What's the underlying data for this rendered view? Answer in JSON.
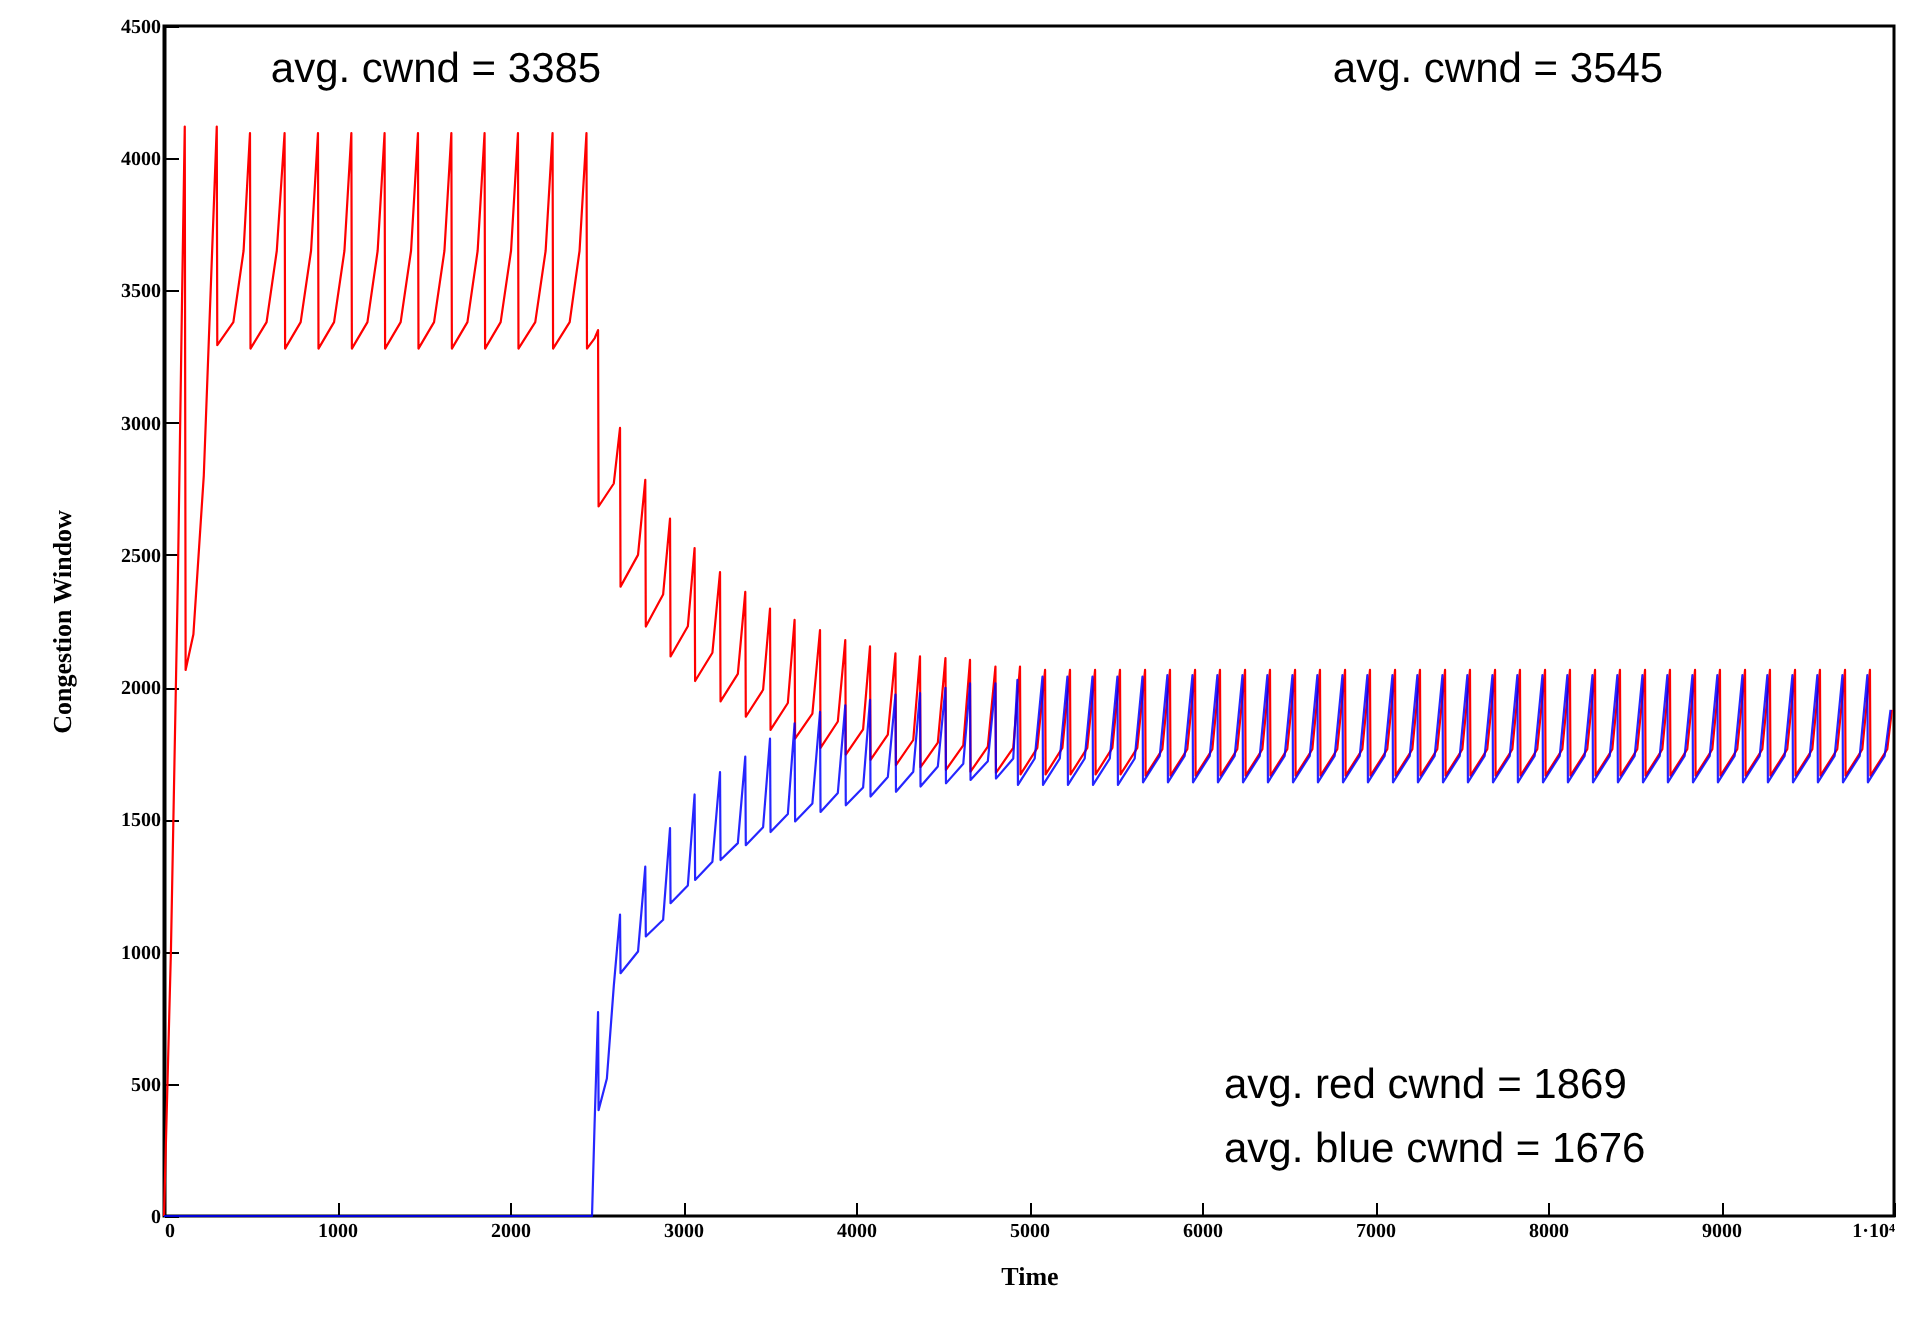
{
  "chart_data": {
    "type": "line",
    "xlabel": "Time",
    "ylabel": "Congestion Window",
    "xlim": [
      0,
      10000
    ],
    "ylim": [
      0,
      4500
    ],
    "xticks": [
      0,
      1000,
      2000,
      3000,
      4000,
      5000,
      6000,
      7000,
      8000,
      9000,
      {
        "value": 10000,
        "label": "1·10⁴"
      }
    ],
    "yticks": [
      0,
      500,
      1000,
      1500,
      2000,
      2500,
      3000,
      3500,
      4000,
      4500
    ],
    "annotations": [
      "avg. cwnd = 3385",
      "avg. cwnd = 3545",
      "avg. red  cwnd =  1869",
      "avg. blue cwnd = 1676"
    ],
    "series": [
      {
        "color": "#ff0000",
        "x": [
          0,
          40,
          80,
          105,
          120,
          125,
          170,
          230,
          305,
          308,
          401,
          460,
          497,
          500,
          593,
          652,
          697,
          700,
          790,
          850,
          890,
          893,
          983,
          1043,
          1083,
          1086,
          1176,
          1235,
          1275,
          1278,
          1368,
          1428,
          1468,
          1471,
          1561,
          1621,
          1661,
          1664,
          1754,
          1813,
          1853,
          1856,
          1946,
          2006,
          2046,
          2049,
          2146,
          2206,
          2246,
          2249,
          2345,
          2402,
          2442,
          2445,
          2490,
          2509,
          2512,
          2600,
          2636,
          2639,
          2740,
          2782,
          2785,
          2885,
          2925,
          2928,
          3028,
          3067,
          3070,
          3170,
          3214,
          3217,
          3317,
          3360,
          3363,
          3463,
          3503,
          3506,
          3606,
          3645,
          3648,
          3748,
          3792,
          3795,
          3895,
          3938,
          3941,
          4041,
          4081,
          4084,
          4184,
          4228,
          4231,
          4331,
          4370,
          4373,
          4473,
          4517,
          4520,
          4620,
          4659,
          4662,
          4762,
          4806,
          4809,
          4909,
          4948,
          4951,
          5048,
          5093,
          5096,
          5193,
          5237,
          5240,
          5337,
          5382,
          5385,
          5482,
          5526,
          5529,
          5626,
          5671,
          5674,
          5771,
          5815,
          5818,
          5915,
          5960,
          5963,
          6060,
          6104,
          6107,
          6204,
          6249,
          6252,
          6349,
          6393,
          6396,
          6493,
          6538,
          6541,
          6638,
          6682,
          6685,
          6782,
          6827,
          6830,
          6927,
          6971,
          6974,
          7071,
          7116,
          7119,
          7216,
          7260,
          7263,
          7360,
          7405,
          7408,
          7505,
          7549,
          7552,
          7649,
          7694,
          7697,
          7794,
          7838,
          7841,
          7938,
          7983,
          7986,
          8083,
          8127,
          8130,
          8227,
          8272,
          8275,
          8372,
          8416,
          8419,
          8516,
          8561,
          8564,
          8661,
          8705,
          8708,
          8805,
          8850,
          8853,
          8950,
          8994,
          8997,
          9094,
          9139,
          9142,
          9239,
          9283,
          9286,
          9383,
          9428,
          9431,
          9528,
          9572,
          9575,
          9672,
          9717,
          9720,
          9817,
          9861,
          9864,
          9961,
          9988
        ],
        "values": [
          0,
          1000,
          2400,
          3500,
          4120,
          2065,
          2200,
          2800,
          4120,
          3293,
          3380,
          3650,
          4095,
          3280,
          3380,
          3650,
          4095,
          3280,
          3380,
          3650,
          4095,
          3280,
          3380,
          3650,
          4095,
          3280,
          3380,
          3650,
          4095,
          3280,
          3380,
          3650,
          4095,
          3280,
          3380,
          3650,
          4095,
          3280,
          3380,
          3650,
          4095,
          3280,
          3380,
          3650,
          4095,
          3280,
          3380,
          3650,
          4095,
          3280,
          3380,
          3650,
          4095,
          3280,
          3320,
          3350,
          2683,
          2770,
          2980,
          2380,
          2500,
          2784,
          2229,
          2350,
          2637,
          2116,
          2230,
          2526,
          2023,
          2130,
          2435,
          1946,
          2050,
          2360,
          1888,
          1990,
          2297,
          1838,
          1940,
          2254,
          1805,
          1900,
          2216,
          1770,
          1870,
          2178,
          1745,
          1840,
          2154,
          1725,
          1820,
          2128,
          1705,
          1800,
          2116,
          1697,
          1790,
          2110,
          1687,
          1780,
          2103,
          1680,
          1775,
          2078,
          1676,
          1770,
          2078,
          1670,
          1770,
          2065,
          1670,
          1770,
          2065,
          1670,
          1770,
          2065,
          1670,
          1770,
          2065,
          1670,
          1770,
          2065,
          1665,
          1765,
          2065,
          1665,
          1765,
          2065,
          1665,
          1765,
          2065,
          1665,
          1765,
          2065,
          1665,
          1765,
          2065,
          1665,
          1765,
          2065,
          1665,
          1765,
          2065,
          1665,
          1765,
          2065,
          1665,
          1765,
          2065,
          1665,
          1765,
          2065,
          1665,
          1765,
          2065,
          1665,
          1765,
          2065,
          1665,
          1765,
          2065,
          1665,
          1765,
          2065,
          1665,
          1765,
          2065,
          1665,
          1765,
          2065,
          1665,
          1765,
          2065,
          1665,
          1765,
          2065,
          1665,
          1765,
          2065,
          1665,
          1765,
          2065,
          1665,
          1765,
          2065,
          1665,
          1765,
          2065,
          1665,
          1765,
          2065,
          1665,
          1765,
          2065,
          1665,
          1765,
          2065,
          1665,
          1765,
          2065,
          1665,
          1765,
          2065,
          1665,
          1765,
          2065,
          1665,
          1765,
          2065,
          1665,
          1765,
          1914
        ]
      },
      {
        "color": "#0000ff",
        "x": [
          0,
          2474,
          2489,
          2509,
          2512,
          2560,
          2600,
          2636,
          2639,
          2740,
          2782,
          2785,
          2885,
          2925,
          2928,
          3028,
          3067,
          3070,
          3170,
          3214,
          3217,
          3317,
          3360,
          3363,
          3463,
          3503,
          3506,
          3606,
          3645,
          3648,
          3748,
          3792,
          3795,
          3895,
          3938,
          3941,
          4041,
          4081,
          4084,
          4184,
          4228,
          4231,
          4331,
          4370,
          4373,
          4473,
          4517,
          4520,
          4620,
          4659,
          4662,
          4762,
          4806,
          4809,
          4909,
          4933,
          4936,
          5033,
          5078,
          5081,
          5178,
          5222,
          5225,
          5322,
          5367,
          5370,
          5467,
          5511,
          5514,
          5611,
          5656,
          5659,
          5756,
          5800,
          5803,
          5900,
          5945,
          5948,
          6045,
          6089,
          6092,
          6189,
          6234,
          6237,
          6334,
          6378,
          6381,
          6478,
          6523,
          6526,
          6623,
          6667,
          6670,
          6767,
          6812,
          6815,
          6912,
          6956,
          6959,
          7056,
          7101,
          7104,
          7201,
          7245,
          7248,
          7345,
          7390,
          7393,
          7490,
          7534,
          7537,
          7634,
          7679,
          7682,
          7779,
          7823,
          7826,
          7923,
          7968,
          7971,
          8068,
          8112,
          8115,
          8212,
          8257,
          8260,
          8357,
          8401,
          8404,
          8501,
          8546,
          8549,
          8646,
          8690,
          8693,
          8790,
          8835,
          8838,
          8935,
          8979,
          8982,
          9079,
          9124,
          9127,
          9224,
          9268,
          9271,
          9368,
          9413,
          9416,
          9513,
          9557,
          9560,
          9657,
          9702,
          9705,
          9802,
          9846,
          9849,
          9946,
          9980
        ],
        "values": [
          0,
          0,
          350,
          771,
          400,
          520,
          870,
          1140,
          918,
          1000,
          1321,
          1057,
          1120,
          1467,
          1183,
          1250,
          1594,
          1271,
          1340,
          1679,
          1346,
          1410,
          1737,
          1402,
          1470,
          1805,
          1452,
          1520,
          1863,
          1492,
          1560,
          1906,
          1528,
          1600,
          1931,
          1553,
          1620,
          1952,
          1586,
          1660,
          1972,
          1604,
          1680,
          1977,
          1624,
          1700,
          1997,
          1636,
          1710,
          2014,
          1649,
          1720,
          2014,
          1654,
          1730,
          2027,
          1630,
          1730,
          2040,
          1630,
          1730,
          2040,
          1630,
          1730,
          2040,
          1630,
          1730,
          2040,
          1630,
          1730,
          2040,
          1640,
          1740,
          2045,
          1640,
          1740,
          2045,
          1640,
          1740,
          2045,
          1640,
          1740,
          2045,
          1640,
          1740,
          2045,
          1640,
          1740,
          2045,
          1640,
          1740,
          2045,
          1640,
          1740,
          2045,
          1640,
          1740,
          2045,
          1640,
          1740,
          2045,
          1640,
          1740,
          2045,
          1640,
          1740,
          2045,
          1640,
          1740,
          2045,
          1640,
          1740,
          2045,
          1640,
          1740,
          2045,
          1640,
          1740,
          2045,
          1640,
          1740,
          2045,
          1640,
          1740,
          2045,
          1640,
          1740,
          2045,
          1640,
          1740,
          2045,
          1640,
          1740,
          2045,
          1640,
          1740,
          2045,
          1640,
          1740,
          2045,
          1640,
          1740,
          2045,
          1640,
          1740,
          2045,
          1640,
          1740,
          2045,
          1640,
          1740,
          2045,
          1640,
          1740,
          2045,
          1640,
          1740,
          2045,
          1640,
          1740,
          1914
        ]
      }
    ]
  }
}
